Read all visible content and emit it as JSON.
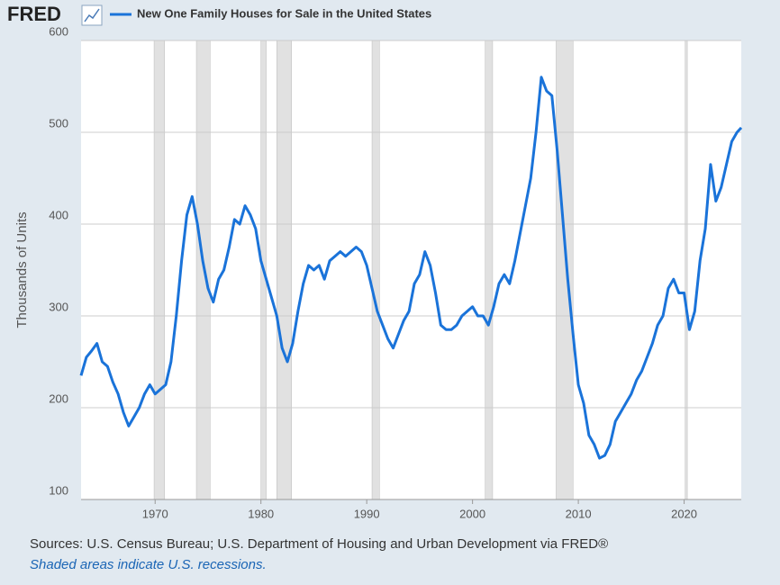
{
  "chart_data": {
    "type": "line",
    "logo": "FRED",
    "ylabel": "Thousands of Units",
    "source": "Sources: U.S. Census Bureau; U.S. Department of Housing and Urban Development via FRED®",
    "note": "Shaded areas indicate U.S. recessions.",
    "xlim": [
      1963,
      2025.4
    ],
    "ylim": [
      100,
      600
    ],
    "xticks": [
      1970,
      1980,
      1990,
      2000,
      2010,
      2020
    ],
    "yticks": [
      100,
      200,
      300,
      400,
      500,
      600
    ],
    "grid": true,
    "recessions": [
      [
        1969.9,
        1970.9
      ],
      [
        1973.9,
        1975.2
      ],
      [
        1980.0,
        1980.5
      ],
      [
        1981.5,
        1982.9
      ],
      [
        1990.5,
        1991.2
      ],
      [
        2001.2,
        2001.9
      ],
      [
        2007.9,
        2009.5
      ],
      [
        2020.1,
        2020.3
      ]
    ],
    "x": [
      1963.0,
      1963.5,
      1964.0,
      1964.5,
      1965.0,
      1965.5,
      1966.0,
      1966.5,
      1967.0,
      1967.5,
      1968.0,
      1968.5,
      1969.0,
      1969.5,
      1970.0,
      1970.5,
      1971.0,
      1971.5,
      1972.0,
      1972.5,
      1973.0,
      1973.5,
      1974.0,
      1974.5,
      1975.0,
      1975.5,
      1976.0,
      1976.5,
      1977.0,
      1977.5,
      1978.0,
      1978.5,
      1979.0,
      1979.5,
      1980.0,
      1980.5,
      1981.0,
      1981.5,
      1982.0,
      1982.5,
      1983.0,
      1983.5,
      1984.0,
      1984.5,
      1985.0,
      1985.5,
      1986.0,
      1986.5,
      1987.0,
      1987.5,
      1988.0,
      1988.5,
      1989.0,
      1989.5,
      1990.0,
      1990.5,
      1991.0,
      1991.5,
      1992.0,
      1992.5,
      1993.0,
      1993.5,
      1994.0,
      1994.5,
      1995.0,
      1995.5,
      1996.0,
      1996.5,
      1997.0,
      1997.5,
      1998.0,
      1998.5,
      1999.0,
      1999.5,
      2000.0,
      2000.5,
      2001.0,
      2001.5,
      2002.0,
      2002.5,
      2003.0,
      2003.5,
      2004.0,
      2004.5,
      2005.0,
      2005.5,
      2006.0,
      2006.5,
      2007.0,
      2007.5,
      2008.0,
      2008.5,
      2009.0,
      2009.5,
      2010.0,
      2010.5,
      2011.0,
      2011.5,
      2012.0,
      2012.5,
      2013.0,
      2013.5,
      2014.0,
      2014.5,
      2015.0,
      2015.5,
      2016.0,
      2016.5,
      2017.0,
      2017.5,
      2018.0,
      2018.5,
      2019.0,
      2019.5,
      2020.0,
      2020.5,
      2021.0,
      2021.5,
      2022.0,
      2022.5,
      2023.0,
      2023.5,
      2024.0,
      2024.5,
      2025.0,
      2025.4
    ],
    "series": [
      {
        "name": "New One Family Houses for Sale in the United States",
        "color": "#1a73d9",
        "values": [
          235,
          255,
          262,
          270,
          250,
          245,
          228,
          215,
          195,
          180,
          190,
          200,
          215,
          225,
          215,
          220,
          225,
          250,
          300,
          360,
          410,
          430,
          400,
          360,
          330,
          315,
          340,
          350,
          375,
          405,
          400,
          420,
          410,
          395,
          360,
          340,
          320,
          300,
          265,
          250,
          270,
          305,
          335,
          355,
          350,
          355,
          340,
          360,
          365,
          370,
          365,
          370,
          375,
          370,
          355,
          330,
          305,
          290,
          275,
          265,
          280,
          295,
          305,
          335,
          345,
          370,
          355,
          325,
          290,
          285,
          285,
          290,
          300,
          305,
          310,
          300,
          300,
          290,
          310,
          335,
          345,
          335,
          360,
          390,
          420,
          450,
          500,
          560,
          545,
          540,
          480,
          410,
          340,
          280,
          225,
          205,
          170,
          160,
          145,
          148,
          160,
          185,
          195,
          205,
          215,
          230,
          240,
          255,
          270,
          290,
          300,
          330,
          340,
          325,
          325,
          285,
          305,
          360,
          395,
          465,
          425,
          440,
          465,
          490,
          500,
          505
        ]
      }
    ]
  }
}
